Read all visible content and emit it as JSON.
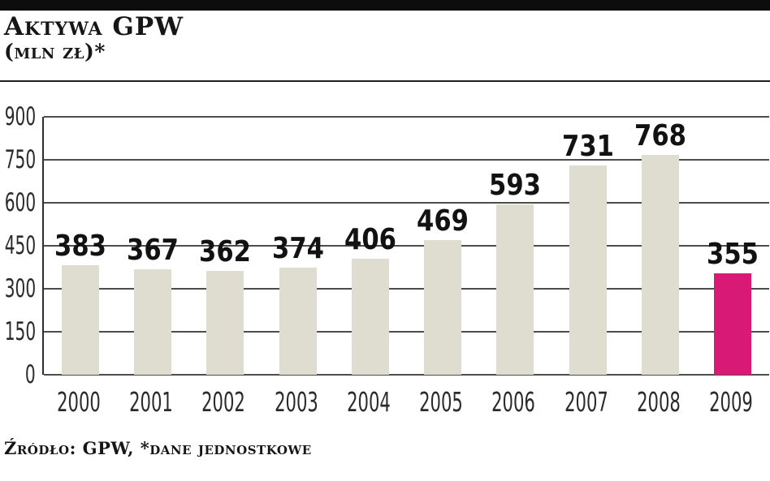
{
  "header": {
    "title": "Aktywa GPW",
    "subtitle": "(mln zł)*"
  },
  "footer": {
    "source": "Źródło: GPW, *dane jednostkowe"
  },
  "colors": {
    "topbar": "#0d0d0d",
    "bar": "#deddd0",
    "highlight": "#d81a76",
    "grid": "#4d4d4d",
    "text": "#1a1a1a"
  },
  "chart_data": {
    "type": "bar",
    "title": "Aktywa GPW",
    "subtitle": "(mln zł)*",
    "categories": [
      "2000",
      "2001",
      "2002",
      "2003",
      "2004",
      "2005",
      "2006",
      "2007",
      "2008",
      "2009"
    ],
    "values": [
      383,
      367,
      362,
      374,
      406,
      469,
      593,
      731,
      768,
      355
    ],
    "highlight_index": 9,
    "xlabel": "",
    "ylabel": "",
    "ylim": [
      0,
      900
    ],
    "yticks": [
      900,
      750,
      600,
      450,
      300,
      150,
      0
    ],
    "grid": true,
    "value_labels": true,
    "legend": null,
    "source": "Źródło: GPW, *dane jednostkowe"
  }
}
